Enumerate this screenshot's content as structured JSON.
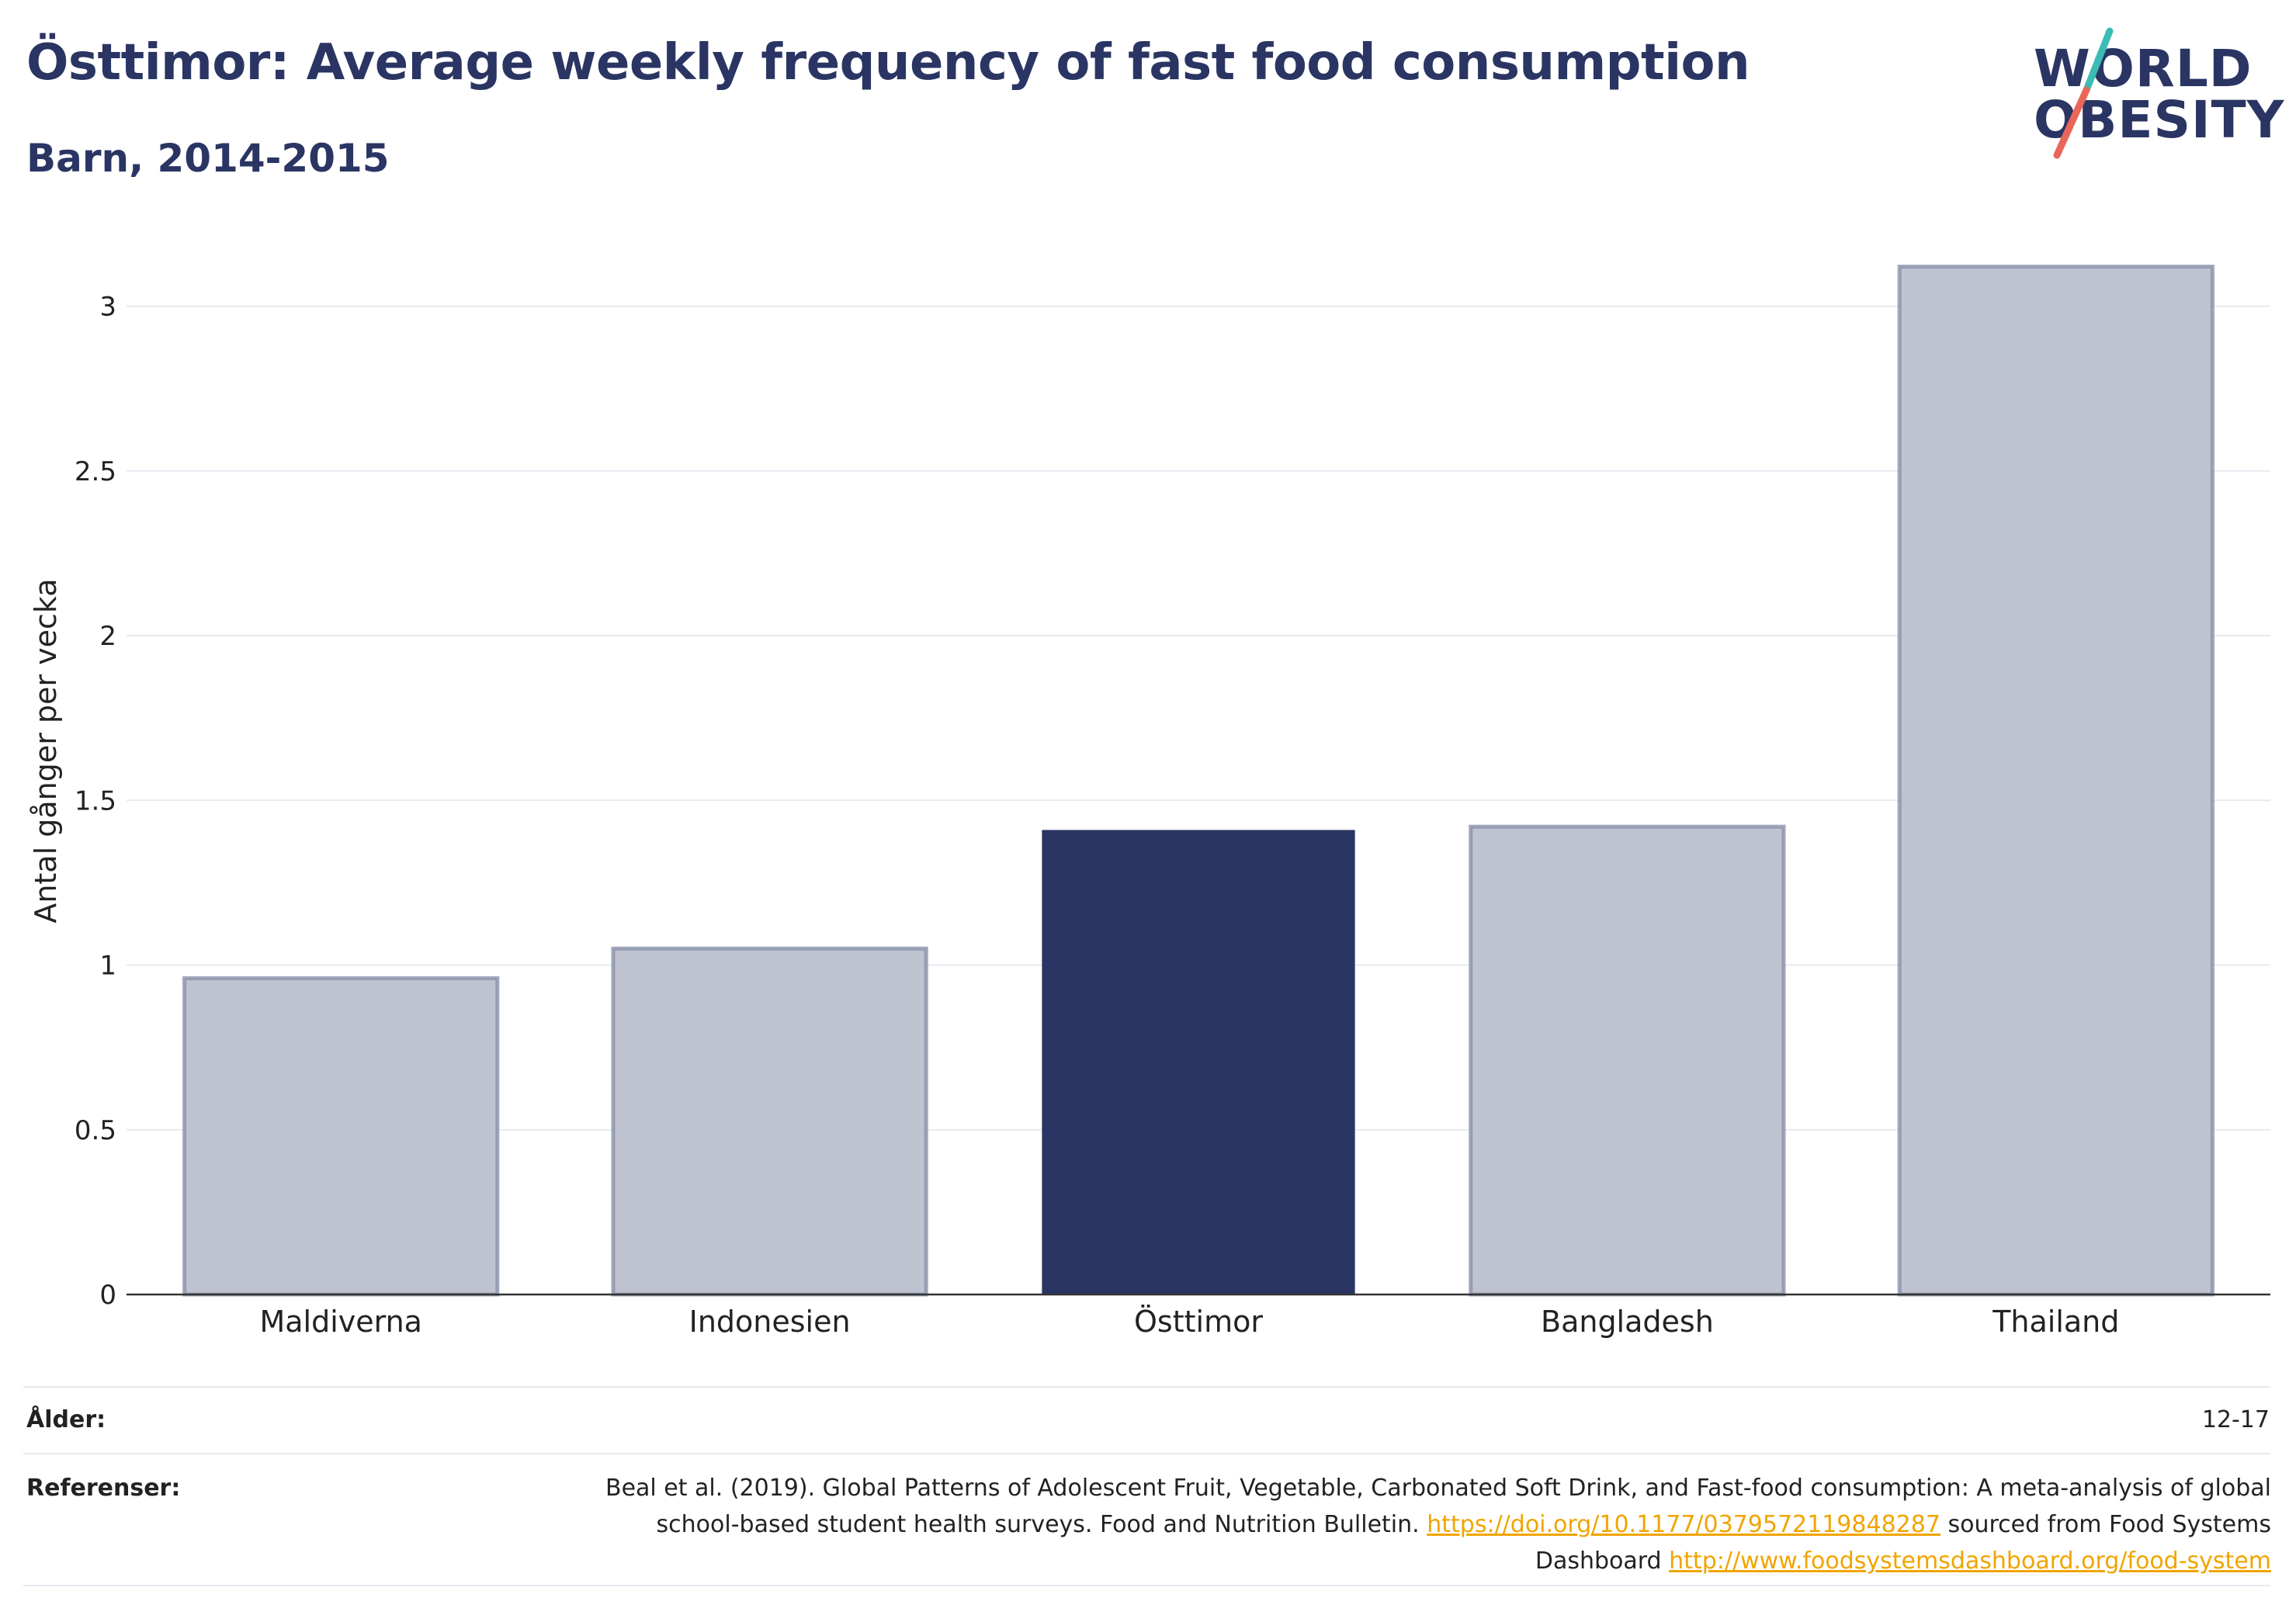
{
  "header": {
    "title": "Östtimor: Average weekly frequency of fast food consumption",
    "subtitle": "Barn, 2014-2015"
  },
  "logo": {
    "line1": "WORLD",
    "line2": "OBESITY",
    "colors": {
      "text": "#2a3563",
      "slash_top": "#3cbcb4",
      "slash_bottom": "#e8675a"
    }
  },
  "chart_data": {
    "type": "bar",
    "categories": [
      "Maldiverna",
      "Indonesien",
      "Östtimor",
      "Bangladesh",
      "Thailand"
    ],
    "values": [
      0.96,
      1.05,
      1.41,
      1.42,
      3.12
    ],
    "highlight": "Östtimor",
    "title": "Östtimor: Average weekly frequency of fast food consumption",
    "subtitle": "Barn, 2014-2015",
    "xlabel": "",
    "ylabel": "Antal gånger per vecka",
    "ylim": [
      0,
      3.3
    ],
    "yticks": [
      0,
      0.5,
      1,
      1.5,
      2,
      2.5,
      3
    ],
    "ytick_labels": [
      "0",
      "0.5",
      "1",
      "1.5",
      "2",
      "2.5",
      "3"
    ],
    "grid": true,
    "colors": {
      "highlight": "#2a3563",
      "other_fill": "#bfc3cf",
      "other_stroke": "#8a91aa"
    }
  },
  "footer": {
    "age_label": "Ålder:",
    "age_value": "12-17",
    "ref_label": "Referenser:",
    "ref_text_1": "Beal et al. (2019). Global Patterns of Adolescent Fruit, Vegetable, Carbonated Soft Drink, and Fast-food consumption: A meta-analysis of global school-based student health surveys. Food and Nutrition Bulletin.",
    "ref_link_1": "https://doi.org/10.1177/0379572119848287",
    "ref_text_2": "sourced from Food Systems Dashboard",
    "ref_link_2": "http://www.foodsystemsdashboard.org/food-system"
  }
}
